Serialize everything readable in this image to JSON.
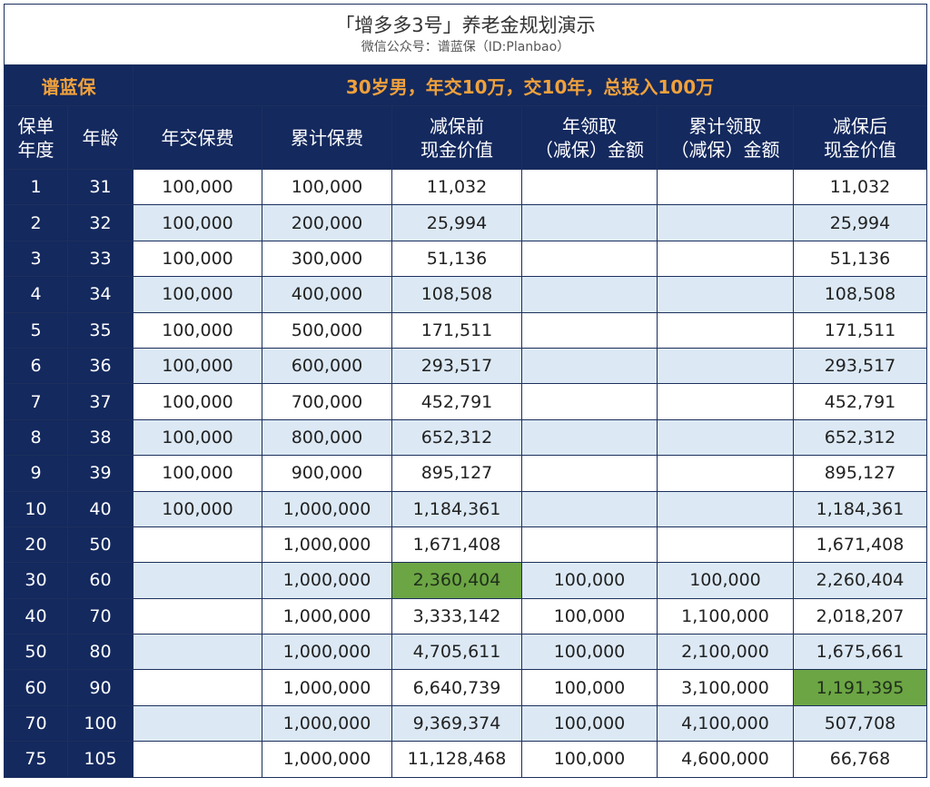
{
  "title": {
    "main": "「增多多3号」养老金规划演示",
    "sub": "微信公众号：谱蓝保（ID:Planbao）"
  },
  "brand": "谱蓝保",
  "scenario": "30岁男，年交10万，交10年，总投入100万",
  "colors": {
    "header_bg": "#14295e",
    "brand_text": "#f0a13c",
    "stripe": "#dce9f5",
    "highlight": "#6ca544"
  },
  "columns": [
    "保单\n年度",
    "年龄",
    "年交保费",
    "累计保费",
    "减保前\n现金价值",
    "年领取\n（减保）金额",
    "累计领取\n（减保）金额",
    "减保后\n现金价值"
  ],
  "rows": [
    [
      "1",
      "31",
      "100,000",
      "100,000",
      "11,032",
      "",
      "",
      "11,032"
    ],
    [
      "2",
      "32",
      "100,000",
      "200,000",
      "25,994",
      "",
      "",
      "25,994"
    ],
    [
      "3",
      "33",
      "100,000",
      "300,000",
      "51,136",
      "",
      "",
      "51,136"
    ],
    [
      "4",
      "34",
      "100,000",
      "400,000",
      "108,508",
      "",
      "",
      "108,508"
    ],
    [
      "5",
      "35",
      "100,000",
      "500,000",
      "171,511",
      "",
      "",
      "171,511"
    ],
    [
      "6",
      "36",
      "100,000",
      "600,000",
      "293,517",
      "",
      "",
      "293,517"
    ],
    [
      "7",
      "37",
      "100,000",
      "700,000",
      "452,791",
      "",
      "",
      "452,791"
    ],
    [
      "8",
      "38",
      "100,000",
      "800,000",
      "652,312",
      "",
      "",
      "652,312"
    ],
    [
      "9",
      "39",
      "100,000",
      "900,000",
      "895,127",
      "",
      "",
      "895,127"
    ],
    [
      "10",
      "40",
      "100,000",
      "1,000,000",
      "1,184,361",
      "",
      "",
      "1,184,361"
    ],
    [
      "20",
      "50",
      "",
      "1,000,000",
      "1,671,408",
      "",
      "",
      "1,671,408"
    ],
    [
      "30",
      "60",
      "",
      "1,000,000",
      "2,360,404",
      "100,000",
      "100,000",
      "2,260,404"
    ],
    [
      "40",
      "70",
      "",
      "1,000,000",
      "3,333,142",
      "100,000",
      "1,100,000",
      "2,018,207"
    ],
    [
      "50",
      "80",
      "",
      "1,000,000",
      "4,705,611",
      "100,000",
      "2,100,000",
      "1,675,661"
    ],
    [
      "60",
      "90",
      "",
      "1,000,000",
      "6,640,739",
      "100,000",
      "3,100,000",
      "1,191,395"
    ],
    [
      "70",
      "100",
      "",
      "1,000,000",
      "9,369,374",
      "100,000",
      "4,100,000",
      "507,708"
    ],
    [
      "75",
      "105",
      "",
      "1,000,000",
      "11,128,468",
      "100,000",
      "4,600,000",
      "66,768"
    ]
  ],
  "highlighted_cells": [
    {
      "row": 11,
      "col": 4
    },
    {
      "row": 14,
      "col": 7
    }
  ]
}
